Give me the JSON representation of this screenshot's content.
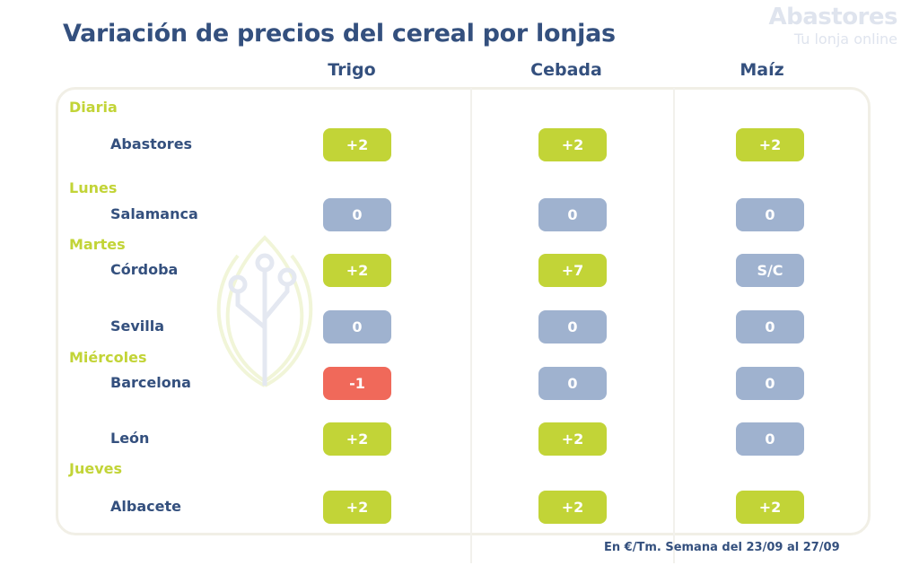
{
  "title": "Variación de precios del cereal por lonjas",
  "footnote": "En €/Tm. Semana del 23/09 al 27/09",
  "watermark": {
    "brand": "Abastores",
    "tagline": "Tu lonja online"
  },
  "colors": {
    "up": "#c2d437",
    "neutral": "#9fb2cf",
    "down": "#f0695a",
    "text": "#34507e",
    "day": "#c2d437"
  },
  "chart_data": {
    "type": "table",
    "title": "Variación de precios del cereal por lonjas",
    "unit": "€/Tm",
    "period": "Semana del 23/09 al 27/09",
    "columns": [
      "Trigo",
      "Cebada",
      "Maíz"
    ],
    "groups": [
      {
        "day": "Diaria",
        "rows": [
          {
            "market": "Abastores",
            "values": [
              "+2",
              "+2",
              "+2"
            ]
          }
        ]
      },
      {
        "day": "Lunes",
        "rows": [
          {
            "market": "Salamanca",
            "values": [
              "0",
              "0",
              "0"
            ]
          }
        ]
      },
      {
        "day": "Martes",
        "rows": [
          {
            "market": "Córdoba",
            "values": [
              "+2",
              "+7",
              "S/C"
            ]
          },
          {
            "market": "Sevilla",
            "values": [
              "0",
              "0",
              "0"
            ]
          }
        ]
      },
      {
        "day": "Miércoles",
        "rows": [
          {
            "market": "Barcelona",
            "values": [
              "-1",
              "0",
              "0"
            ]
          },
          {
            "market": "León",
            "values": [
              "+2",
              "+2",
              "0"
            ]
          }
        ]
      },
      {
        "day": "Jueves",
        "rows": [
          {
            "market": "Albacete",
            "values": [
              "+2",
              "+2",
              "+2"
            ]
          }
        ]
      }
    ]
  }
}
